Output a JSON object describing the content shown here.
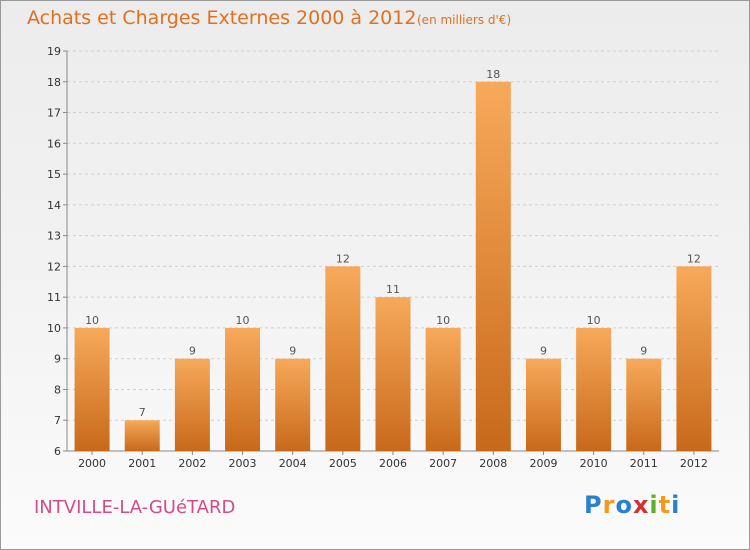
{
  "title": "Achats et Charges Externes 2000 à 2012",
  "unit_note": "(en milliers d'€)",
  "location": "INTVILLE-LA-GUéTARD",
  "logo_text": "Proxiti",
  "colors": {
    "bar_light": "#f7a95a",
    "bar_dark": "#c8691a",
    "title": "#e07020",
    "location": "#d64a8a",
    "grid": "#d0d0d0"
  },
  "chart_data": {
    "type": "bar",
    "categories": [
      "2000",
      "2001",
      "2002",
      "2003",
      "2004",
      "2005",
      "2006",
      "2007",
      "2008",
      "2009",
      "2010",
      "2011",
      "2012"
    ],
    "values": [
      10,
      7,
      9,
      10,
      9,
      12,
      11,
      10,
      18,
      9,
      10,
      9,
      12
    ],
    "title": "Achats et Charges Externes 2000 à 2012",
    "xlabel": "",
    "ylabel": "",
    "ylim": [
      6,
      19
    ],
    "yticks": [
      6,
      7,
      8,
      9,
      10,
      11,
      12,
      13,
      14,
      15,
      16,
      17,
      18,
      19
    ],
    "grid": true,
    "legend": "none"
  }
}
